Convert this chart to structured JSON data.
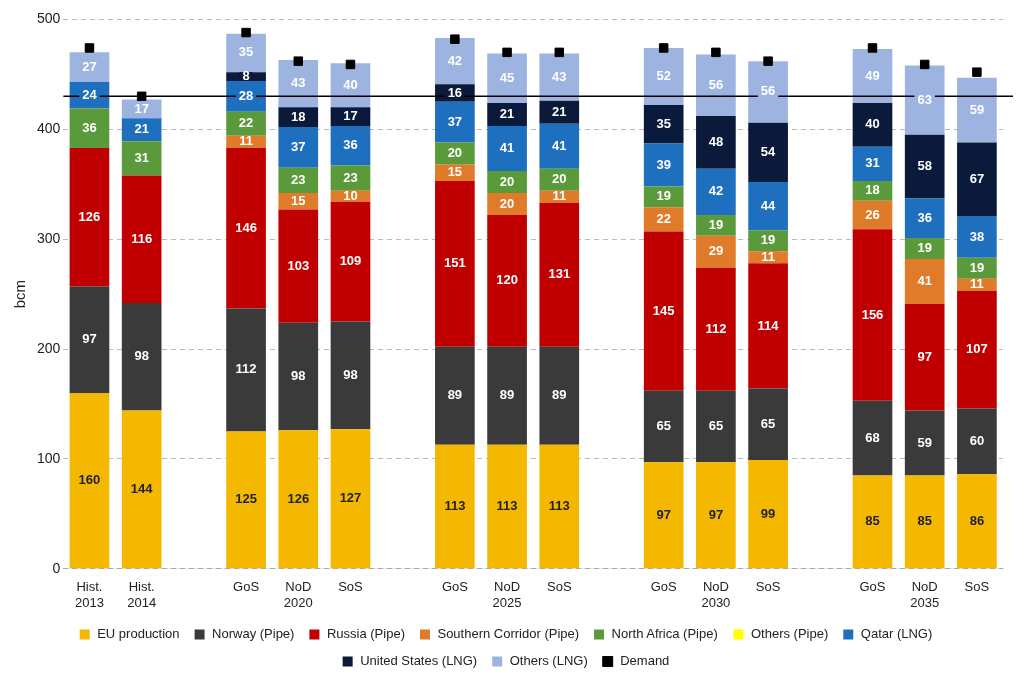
{
  "chart_data": {
    "type": "bar",
    "stacked": true,
    "ylabel": "bcm",
    "ylim": [
      0,
      500
    ],
    "yticks": [
      0,
      100,
      200,
      300,
      400,
      500
    ],
    "grid": "y",
    "legend": "bottom",
    "data_labels": true,
    "categories": [
      "Hist.\n2013",
      "Hist.\n2014",
      null,
      "GoS",
      "NoD\n2020",
      "SoS",
      null,
      "GoS",
      "NoD\n2025",
      "SoS",
      null,
      "GoS",
      "NoD\n2030",
      "SoS",
      null,
      "GoS",
      "NoD\n2035",
      "SoS"
    ],
    "series": [
      {
        "name": "EU production",
        "color": "#f5b800",
        "values": [
          160,
          144,
          null,
          125,
          126,
          127,
          null,
          113,
          113,
          113,
          null,
          97,
          97,
          99,
          null,
          85,
          85,
          86
        ]
      },
      {
        "name": "Norway (Pipe)",
        "color": "#3a3a3a",
        "values": [
          97,
          98,
          null,
          112,
          98,
          98,
          null,
          89,
          89,
          89,
          null,
          65,
          65,
          65,
          null,
          68,
          59,
          60
        ]
      },
      {
        "name": "Russia (Pipe)",
        "color": "#c00000",
        "values": [
          126,
          116,
          null,
          146,
          103,
          109,
          null,
          151,
          120,
          131,
          null,
          145,
          112,
          114,
          null,
          156,
          97,
          107
        ]
      },
      {
        "name": "Southern Corridor (Pipe)",
        "color": "#e07b2a",
        "values": [
          null,
          null,
          null,
          11,
          15,
          10,
          null,
          15,
          20,
          11,
          null,
          22,
          29,
          11,
          null,
          26,
          41,
          11
        ]
      },
      {
        "name": "North Africa (Pipe)",
        "color": "#5a9a3a",
        "values": [
          36,
          31,
          null,
          22,
          23,
          23,
          null,
          20,
          20,
          20,
          null,
          19,
          19,
          19,
          null,
          18,
          19,
          19
        ]
      },
      {
        "name": "Others (Pipe)",
        "color": "#ffff00",
        "values": [
          null,
          null,
          null,
          null,
          null,
          null,
          null,
          null,
          null,
          null,
          null,
          null,
          null,
          null,
          null,
          null,
          null,
          null
        ]
      },
      {
        "name": "Qatar (LNG)",
        "color": "#1f6fbf",
        "values": [
          24,
          21,
          null,
          28,
          37,
          36,
          null,
          37,
          41,
          41,
          null,
          39,
          42,
          44,
          null,
          31,
          36,
          38
        ]
      },
      {
        "name": "United States (LNG)",
        "color": "#0b1a3a",
        "values": [
          null,
          null,
          null,
          8,
          18,
          17,
          null,
          16,
          21,
          21,
          null,
          35,
          48,
          54,
          null,
          40,
          58,
          67
        ]
      },
      {
        "name": "Others (LNG)",
        "color": "#9db3e0",
        "values": [
          27,
          17,
          null,
          35,
          43,
          40,
          null,
          42,
          45,
          43,
          null,
          52,
          56,
          56,
          null,
          49,
          63,
          59
        ]
      },
      {
        "name": "Demand",
        "type": "scatter",
        "marker": "square",
        "color": "#000000",
        "values": [
          474,
          430,
          null,
          488,
          462,
          459,
          null,
          482,
          470,
          470,
          null,
          474,
          470,
          462,
          null,
          474,
          459,
          452
        ],
        "value_labels": [
          null,
          null,
          null,
          null,
          null,
          null,
          null,
          null,
          null,
          null,
          null,
          null,
          null,
          null,
          null,
          null,
          null,
          null
        ]
      }
    ],
    "ref_lines": [
      {
        "axis": "y",
        "value": 430,
        "color": "#000000"
      }
    ]
  }
}
